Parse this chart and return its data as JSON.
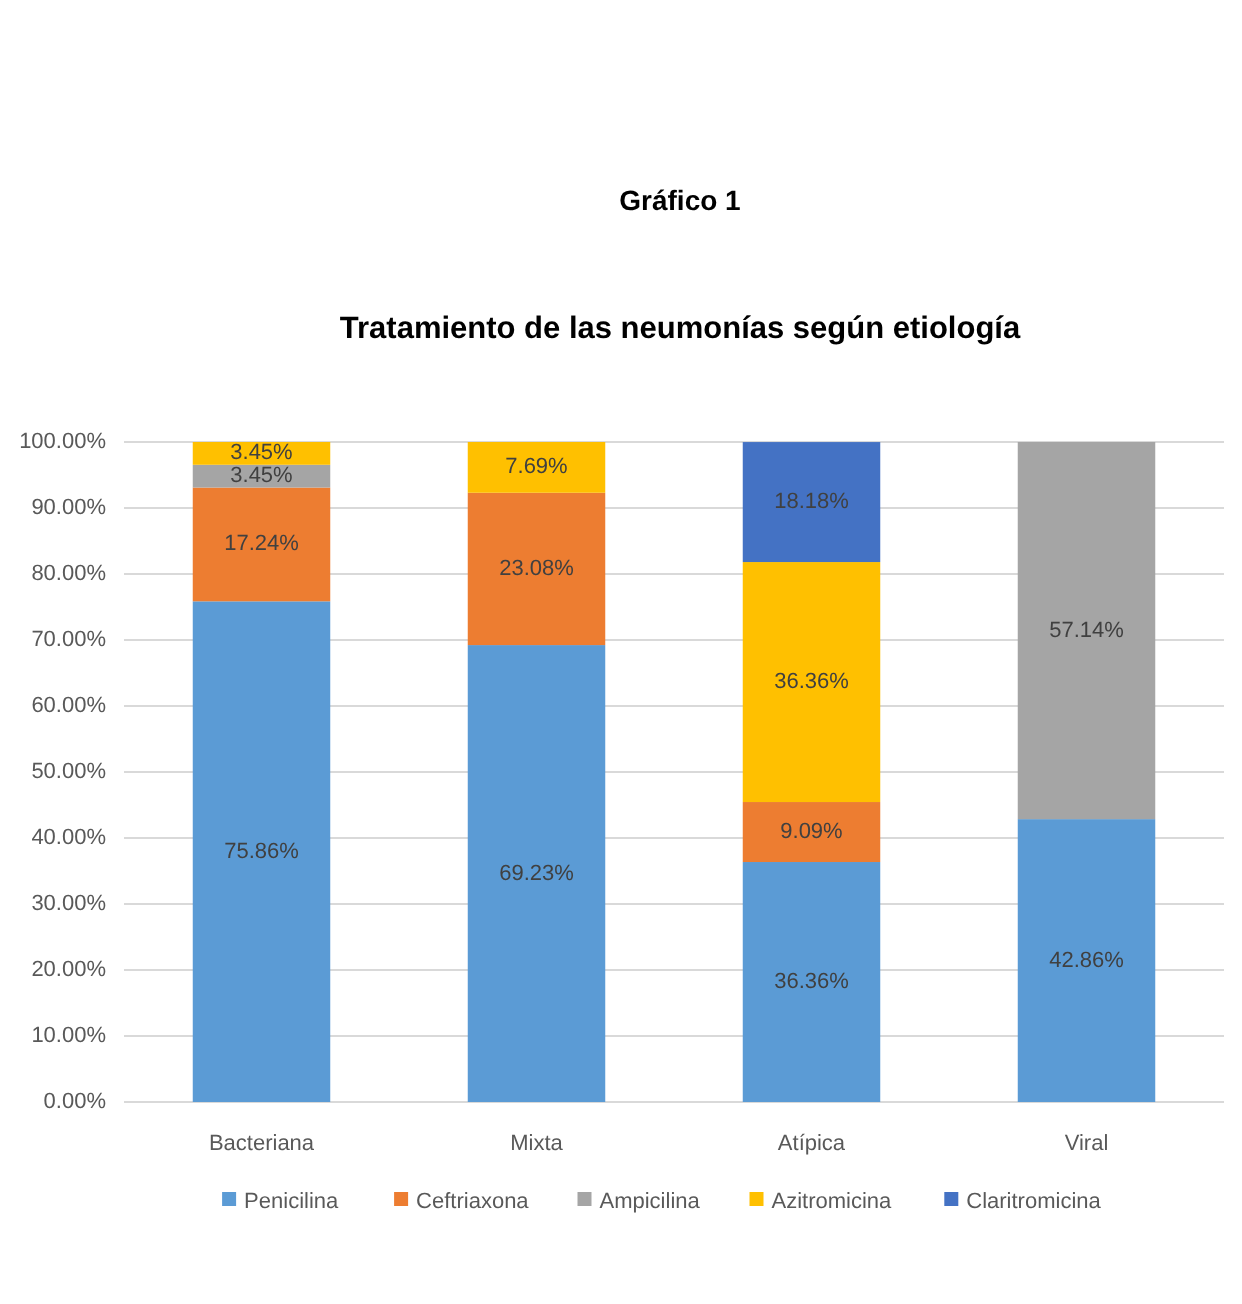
{
  "chart_data": {
    "type": "bar",
    "title": "Gráfico 1",
    "subtitle": "Tratamiento de las neumonías según etiología",
    "categories": [
      "Bacteriana",
      "Mixta",
      "Atípica",
      "Viral"
    ],
    "stacked": true,
    "series": [
      {
        "name": "Penicilina",
        "color": "#5b9bd5",
        "values": [
          75.86,
          69.23,
          36.36,
          42.86
        ],
        "value_labels": [
          "75.86%",
          "69.23%",
          "36.36%",
          "42.86%"
        ]
      },
      {
        "name": "Ceftriaxona",
        "color": "#ed7d31",
        "values": [
          17.24,
          23.08,
          9.09,
          null
        ],
        "value_labels": [
          "17.24%",
          "23.08%",
          "9.09%",
          null
        ]
      },
      {
        "name": "Ampicilina",
        "color": "#a5a5a5",
        "values": [
          3.45,
          null,
          null,
          57.14
        ],
        "value_labels": [
          "3.45%",
          null,
          null,
          "57.14%"
        ]
      },
      {
        "name": "Azitromicina",
        "color": "#ffc000",
        "values": [
          3.45,
          7.69,
          36.36,
          null
        ],
        "value_labels": [
          "3.45%",
          "7.69%",
          "36.36%",
          null
        ]
      },
      {
        "name": "Claritromicina",
        "color": "#4472c4",
        "values": [
          null,
          null,
          18.18,
          null
        ],
        "value_labels": [
          null,
          null,
          "18.18%",
          null
        ]
      }
    ],
    "ylim": [
      0,
      100
    ],
    "yticks": [
      {
        "value": 0,
        "label": "0.00%"
      },
      {
        "value": 10,
        "label": "10.00%"
      },
      {
        "value": 20,
        "label": "20.00%"
      },
      {
        "value": 30,
        "label": "30.00%"
      },
      {
        "value": 40,
        "label": "40.00%"
      },
      {
        "value": 50,
        "label": "50.00%"
      },
      {
        "value": 60,
        "label": "60.00%"
      },
      {
        "value": 70,
        "label": "70.00%"
      },
      {
        "value": 80,
        "label": "80.00%"
      },
      {
        "value": 90,
        "label": "90.00%"
      },
      {
        "value": 100,
        "label": "100.00%"
      }
    ],
    "grid": "y",
    "legend": "bottom"
  }
}
